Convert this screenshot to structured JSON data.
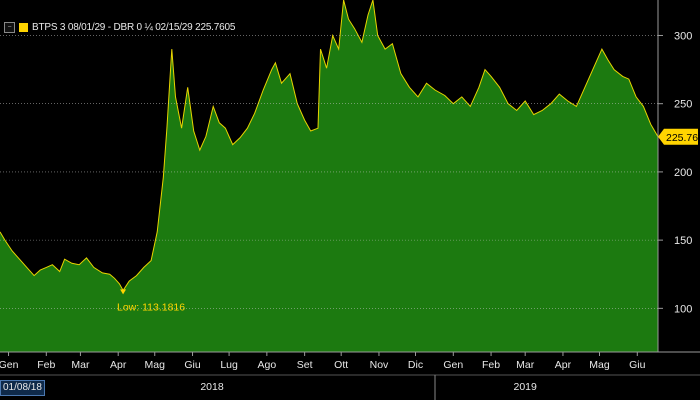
{
  "colors": {
    "background": "#000000",
    "area_fill": "#1c7a10",
    "area_line": "#e8d400",
    "grid": "#c8c8c8",
    "tick_text": "#e8e8e8",
    "accent": "#ffd400"
  },
  "legend": {
    "collapse_icon": "minus-box-icon",
    "text": "BTPS 3 08/01/29 - DBR 0 ¼ 02/15/29 225.7605"
  },
  "start_date": "01/08/18",
  "chart_data": {
    "type": "area",
    "title": "",
    "xlabel": "",
    "ylabel": "",
    "ylim": [
      68,
      326
    ],
    "y_ticks": [
      100,
      150,
      200,
      250,
      300
    ],
    "grid": "horizontal dotted",
    "x_ticks": [
      "Gen",
      "Feb",
      "Mar",
      "Apr",
      "Mag",
      "Giu",
      "Lug",
      "Ago",
      "Set",
      "Ott",
      "Nov",
      "Dic",
      "Gen",
      "Feb",
      "Mar",
      "Apr",
      "Mag",
      "Giu"
    ],
    "x_tick_dates": [
      "2018-01-15",
      "2018-02-15",
      "2018-03-15",
      "2018-04-15",
      "2018-05-15",
      "2018-06-15",
      "2018-07-15",
      "2018-08-15",
      "2018-09-15",
      "2018-10-15",
      "2018-11-15",
      "2018-12-15",
      "2019-01-15",
      "2019-02-15",
      "2019-03-15",
      "2019-04-15",
      "2019-05-15",
      "2019-06-15"
    ],
    "year_labels": [
      {
        "label": "2018",
        "date": "2018-07-01"
      },
      {
        "label": "2019",
        "date": "2019-03-15"
      }
    ],
    "year_dividers": [
      "2018-12-31"
    ],
    "series": [
      {
        "name": "BTPS 3 08/01/29 - DBR 0 ¼ 02/15/29",
        "last_value": "225.7605",
        "points": [
          [
            "2018-01-08",
            156
          ],
          [
            "2018-01-12",
            150
          ],
          [
            "2018-01-18",
            142
          ],
          [
            "2018-01-24",
            136
          ],
          [
            "2018-01-30",
            130
          ],
          [
            "2018-02-05",
            124
          ],
          [
            "2018-02-10",
            128
          ],
          [
            "2018-02-15",
            130
          ],
          [
            "2018-02-20",
            132
          ],
          [
            "2018-02-26",
            127
          ],
          [
            "2018-03-02",
            136
          ],
          [
            "2018-03-08",
            133
          ],
          [
            "2018-03-14",
            132
          ],
          [
            "2018-03-20",
            137
          ],
          [
            "2018-03-26",
            130
          ],
          [
            "2018-04-02",
            126
          ],
          [
            "2018-04-08",
            125
          ],
          [
            "2018-04-12",
            122
          ],
          [
            "2018-04-16",
            118
          ],
          [
            "2018-04-19",
            113.1816
          ],
          [
            "2018-04-24",
            120
          ],
          [
            "2018-04-30",
            124
          ],
          [
            "2018-05-06",
            130
          ],
          [
            "2018-05-12",
            135
          ],
          [
            "2018-05-17",
            156
          ],
          [
            "2018-05-22",
            196
          ],
          [
            "2018-05-25",
            232
          ],
          [
            "2018-05-29",
            290
          ],
          [
            "2018-06-01",
            255
          ],
          [
            "2018-06-06",
            232
          ],
          [
            "2018-06-11",
            262
          ],
          [
            "2018-06-16",
            230
          ],
          [
            "2018-06-21",
            216
          ],
          [
            "2018-06-26",
            226
          ],
          [
            "2018-07-02",
            248
          ],
          [
            "2018-07-07",
            236
          ],
          [
            "2018-07-12",
            232
          ],
          [
            "2018-07-18",
            220
          ],
          [
            "2018-07-24",
            225
          ],
          [
            "2018-07-30",
            232
          ],
          [
            "2018-08-05",
            243
          ],
          [
            "2018-08-12",
            260
          ],
          [
            "2018-08-19",
            275
          ],
          [
            "2018-08-22",
            280
          ],
          [
            "2018-08-27",
            265
          ],
          [
            "2018-09-03",
            272
          ],
          [
            "2018-09-09",
            250
          ],
          [
            "2018-09-15",
            238
          ],
          [
            "2018-09-20",
            230
          ],
          [
            "2018-09-26",
            232
          ],
          [
            "2018-09-28",
            290
          ],
          [
            "2018-10-03",
            276
          ],
          [
            "2018-10-08",
            300
          ],
          [
            "2018-10-13",
            290
          ],
          [
            "2018-10-17",
            326
          ],
          [
            "2018-10-21",
            312
          ],
          [
            "2018-10-26",
            305
          ],
          [
            "2018-11-01",
            295
          ],
          [
            "2018-11-06",
            315
          ],
          [
            "2018-11-10",
            326
          ],
          [
            "2018-11-14",
            300
          ],
          [
            "2018-11-20",
            290
          ],
          [
            "2018-11-26",
            294
          ],
          [
            "2018-12-03",
            272
          ],
          [
            "2018-12-10",
            262
          ],
          [
            "2018-12-17",
            255
          ],
          [
            "2018-12-24",
            265
          ],
          [
            "2018-12-31",
            260
          ],
          [
            "2019-01-08",
            256
          ],
          [
            "2019-01-15",
            250
          ],
          [
            "2019-01-22",
            255
          ],
          [
            "2019-01-29",
            248
          ],
          [
            "2019-02-05",
            262
          ],
          [
            "2019-02-10",
            275
          ],
          [
            "2019-02-15",
            270
          ],
          [
            "2019-02-22",
            262
          ],
          [
            "2019-03-01",
            250
          ],
          [
            "2019-03-08",
            245
          ],
          [
            "2019-03-15",
            252
          ],
          [
            "2019-03-22",
            242
          ],
          [
            "2019-03-29",
            245
          ],
          [
            "2019-04-05",
            250
          ],
          [
            "2019-04-12",
            257
          ],
          [
            "2019-04-19",
            252
          ],
          [
            "2019-04-26",
            248
          ],
          [
            "2019-05-03",
            262
          ],
          [
            "2019-05-10",
            276
          ],
          [
            "2019-05-17",
            290
          ],
          [
            "2019-05-22",
            282
          ],
          [
            "2019-05-27",
            275
          ],
          [
            "2019-06-03",
            270
          ],
          [
            "2019-06-08",
            268
          ],
          [
            "2019-06-14",
            255
          ],
          [
            "2019-06-20",
            248
          ],
          [
            "2019-06-26",
            235
          ],
          [
            "2019-07-02",
            225.7605
          ]
        ]
      }
    ],
    "annotations": [
      {
        "text": "Low: 113.1816",
        "date": "2018-04-19",
        "value": 113.1816
      }
    ],
    "last_value_label": "225.7605"
  }
}
